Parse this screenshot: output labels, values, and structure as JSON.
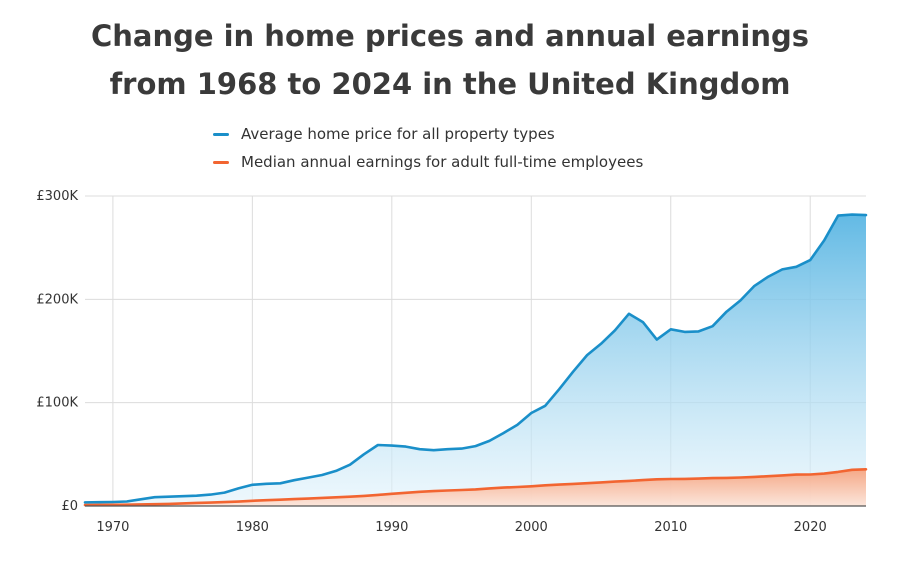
{
  "title_line1": "Change in home prices and annual earnings",
  "title_line2": "from 1968 to 2024 in the United Kingdom",
  "colors": {
    "home": "#1a8fc9",
    "earnings": "#f26531",
    "grid": "#dcdcdc"
  },
  "chart_data": {
    "type": "area",
    "title": "Change in home prices and annual earnings from 1968 to 2024 in the United Kingdom",
    "xlabel": "",
    "ylabel": "",
    "xlim": [
      1968,
      2024
    ],
    "ylim": [
      0,
      300000
    ],
    "x_ticks": [
      1970,
      1980,
      1990,
      2000,
      2010,
      2020
    ],
    "y_ticks": [
      0,
      100000,
      200000,
      300000
    ],
    "y_tick_labels": [
      "£0",
      "£100K",
      "£200K",
      "£300K"
    ],
    "grid": true,
    "legend_position": "top-center",
    "series": [
      {
        "name": "Average home price for all property types",
        "x": [
          1968,
          1969,
          1970,
          1971,
          1972,
          1973,
          1974,
          1975,
          1976,
          1977,
          1978,
          1979,
          1980,
          1981,
          1982,
          1983,
          1984,
          1985,
          1986,
          1987,
          1988,
          1989,
          1990,
          1991,
          1992,
          1993,
          1994,
          1995,
          1996,
          1997,
          1998,
          1999,
          2000,
          2001,
          2002,
          2003,
          2004,
          2005,
          2006,
          2007,
          2008,
          2009,
          2010,
          2011,
          2012,
          2013,
          2014,
          2015,
          2016,
          2017,
          2018,
          2019,
          2020,
          2021,
          2022,
          2023,
          2024
        ],
        "values": [
          3500,
          3700,
          3900,
          4400,
          6500,
          8500,
          9000,
          9500,
          10000,
          11000,
          13000,
          17000,
          20500,
          21500,
          22000,
          25000,
          27500,
          30000,
          34000,
          40000,
          50000,
          59000,
          58500,
          57500,
          55000,
          54000,
          55000,
          55500,
          58000,
          63000,
          70500,
          78500,
          90000,
          97000,
          113000,
          130000,
          146000,
          157000,
          170000,
          186000,
          178000,
          161000,
          171000,
          168500,
          169000,
          174000,
          188000,
          199000,
          213000,
          222000,
          229000,
          231500,
          238000,
          257000,
          281000,
          282000,
          281500
        ]
      },
      {
        "name": "Median annual earnings for adult full-time employees",
        "x": [
          1968,
          1969,
          1970,
          1971,
          1972,
          1973,
          1974,
          1975,
          1976,
          1977,
          1978,
          1979,
          1980,
          1981,
          1982,
          1983,
          1984,
          1985,
          1986,
          1987,
          1988,
          1989,
          1990,
          1991,
          1992,
          1993,
          1994,
          1995,
          1996,
          1997,
          1998,
          1999,
          2000,
          2001,
          2002,
          2003,
          2004,
          2005,
          2006,
          2007,
          2008,
          2009,
          2010,
          2011,
          2012,
          2013,
          2014,
          2015,
          2016,
          2017,
          2018,
          2019,
          2020,
          2021,
          2022,
          2023,
          2024
        ],
        "values": [
          1000,
          1100,
          1200,
          1300,
          1500,
          1700,
          2000,
          2500,
          3000,
          3300,
          3800,
          4300,
          5000,
          5600,
          6100,
          6700,
          7200,
          7800,
          8400,
          9000,
          9800,
          10700,
          11800,
          12800,
          13700,
          14400,
          15000,
          15500,
          16100,
          17000,
          17800,
          18400,
          19100,
          20000,
          20700,
          21400,
          22100,
          22800,
          23600,
          24300,
          25100,
          25800,
          26100,
          26200,
          26500,
          27000,
          27200,
          27600,
          28200,
          28800,
          29600,
          30400,
          30500,
          31400,
          33000,
          35000,
          35500
        ]
      }
    ]
  }
}
